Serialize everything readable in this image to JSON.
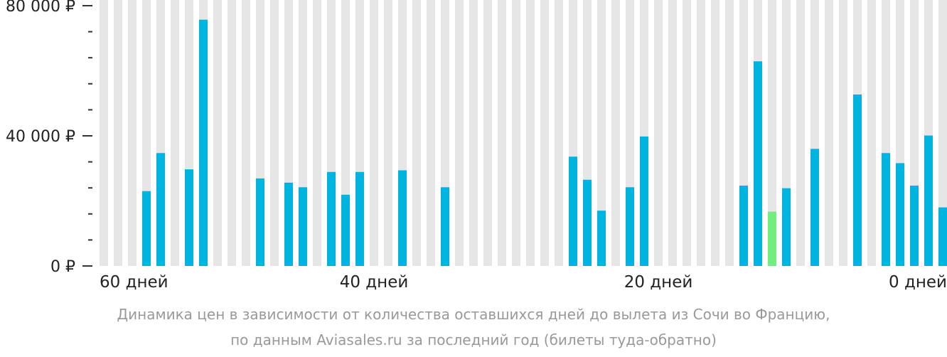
{
  "chart_data": {
    "type": "bar",
    "title": "",
    "xlabel": "",
    "ylabel": "",
    "ylim": [
      0,
      80000
    ],
    "grid": false,
    "y_ticks": [
      {
        "value": 0,
        "label": "0 ₽"
      },
      {
        "value": 40000,
        "label": "40 000 ₽"
      },
      {
        "value": 80000,
        "label": "80 000 ₽"
      }
    ],
    "x_ticks": [
      {
        "value": 60,
        "label": "60 дней"
      },
      {
        "value": 40,
        "label": "40 дней"
      },
      {
        "value": 20,
        "label": "20 дней"
      },
      {
        "value": 0,
        "label": "0 дней"
      }
    ],
    "x": [
      59,
      58,
      57,
      56,
      55,
      54,
      53,
      52,
      51,
      50,
      49,
      48,
      47,
      46,
      45,
      44,
      43,
      42,
      41,
      40,
      39,
      38,
      37,
      36,
      35,
      34,
      33,
      32,
      31,
      30,
      29,
      28,
      27,
      26,
      25,
      24,
      23,
      22,
      21,
      20,
      19,
      18,
      17,
      16,
      15,
      14,
      13,
      12,
      11,
      10,
      9,
      8,
      7,
      6,
      5,
      4,
      3,
      2,
      1,
      0
    ],
    "values": [
      null,
      null,
      null,
      23000,
      34700,
      null,
      29700,
      75700,
      null,
      null,
      null,
      26900,
      null,
      25600,
      24200,
      null,
      28900,
      21900,
      28900,
      null,
      null,
      29400,
      null,
      null,
      24200,
      null,
      null,
      null,
      null,
      null,
      null,
      null,
      null,
      33600,
      26500,
      17000,
      null,
      24200,
      39800,
      null,
      null,
      null,
      null,
      null,
      null,
      24700,
      62900,
      16700,
      23900,
      null,
      36000,
      null,
      null,
      52700,
      null,
      34700,
      31600,
      24700,
      40100,
      18000
    ],
    "highlight_index": 47,
    "colors": {
      "bar": "#00b4e0",
      "highlight": "#72ee80",
      "background_stripe": "#e6e6e6",
      "axis": "#333333"
    }
  },
  "caption": {
    "line1": "Динамика цен в зависимости от количества оставшихся дней до вылета из Сочи во Францию,",
    "line2": "по данным Aviasales.ru за последний год (билеты туда-обратно)"
  }
}
